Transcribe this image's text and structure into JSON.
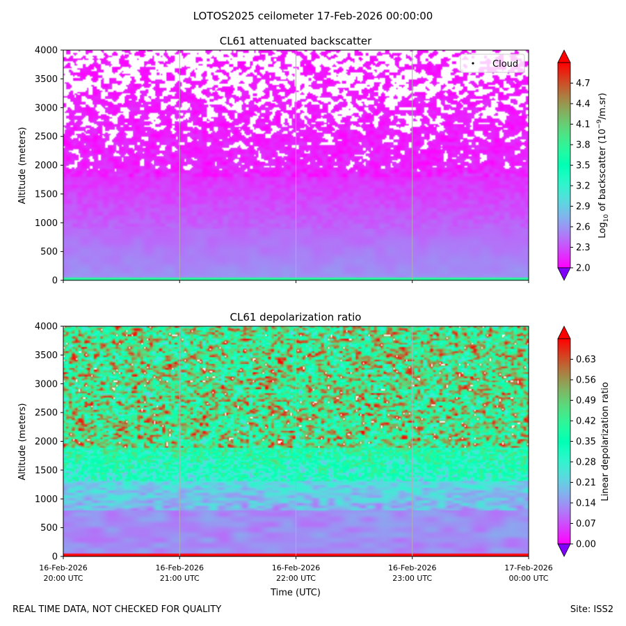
{
  "figure": {
    "suptitle": "LOTOS2025 ceilometer 17-Feb-2026 00:00:00",
    "footer_left": "REAL TIME DATA, NOT CHECKED FOR QUALITY",
    "footer_right": "Site: ISS2",
    "xlabel": "Time (UTC)",
    "x_ticks": [
      {
        "date": "16-Feb-2026",
        "time": "20:00 UTC"
      },
      {
        "date": "16-Feb-2026",
        "time": "21:00 UTC"
      },
      {
        "date": "16-Feb-2026",
        "time": "22:00 UTC"
      },
      {
        "date": "16-Feb-2026",
        "time": "23:00 UTC"
      },
      {
        "date": "17-Feb-2026",
        "time": "00:00 UTC"
      }
    ]
  },
  "chart_data": [
    {
      "type": "heatmap",
      "title": "CL61 attenuated backscatter",
      "xlabel": "",
      "ylabel": "Altitude (meters)",
      "x_range_hours": [
        20,
        24
      ],
      "ylim": [
        0,
        4000
      ],
      "y_ticks": [
        0,
        500,
        1000,
        1500,
        2000,
        2500,
        3000,
        3500,
        4000
      ],
      "legend": {
        "label": "Cloud",
        "placement": "upper-right"
      },
      "colorbar": {
        "label_prefix": "Log",
        "label_sub": "10",
        "label_mid": " of backscatter (10",
        "label_sup": "−9",
        "label_suffix": "/m.sr)",
        "min": 2.0,
        "max": 5.0,
        "ticks": [
          "2.0",
          "2.3",
          "2.6",
          "2.9",
          "3.2",
          "3.5",
          "3.8",
          "4.1",
          "4.4",
          "4.7"
        ],
        "extend": "both",
        "colormap": "rainbow"
      }
    },
    {
      "type": "heatmap",
      "title": "CL61 depolarization ratio",
      "xlabel": "Time (UTC)",
      "ylabel": "Altitude (meters)",
      "x_range_hours": [
        20,
        24
      ],
      "ylim": [
        0,
        4000
      ],
      "y_ticks": [
        0,
        500,
        1000,
        1500,
        2000,
        2500,
        3000,
        3500,
        4000
      ],
      "colorbar": {
        "label": "Linear depolarization ratio",
        "min": 0.0,
        "max": 0.7,
        "ticks": [
          "0.00",
          "0.07",
          "0.14",
          "0.21",
          "0.28",
          "0.35",
          "0.42",
          "0.49",
          "0.56",
          "0.63"
        ],
        "extend": "both",
        "colormap": "rainbow"
      }
    }
  ]
}
